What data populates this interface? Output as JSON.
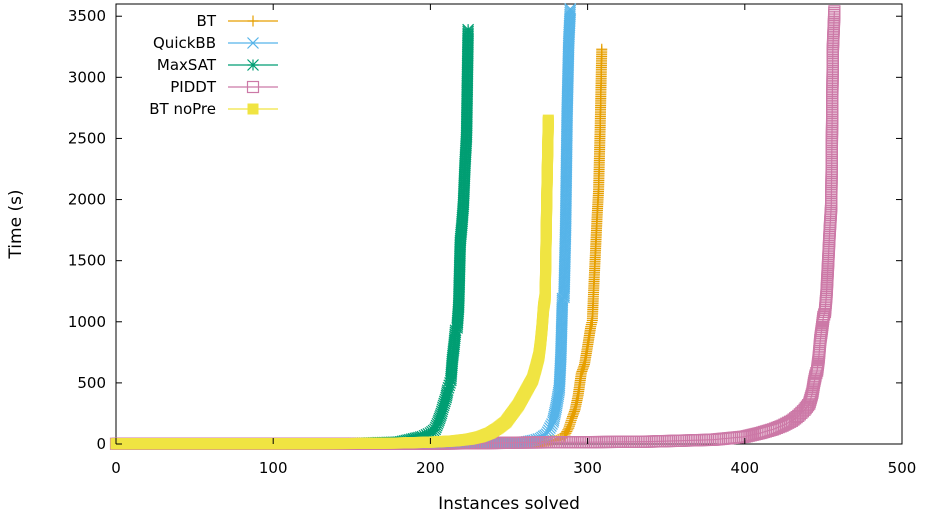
{
  "chart_data": {
    "type": "line",
    "title": "",
    "xlabel": "Instances solved",
    "ylabel": "Time (s)",
    "xlim": [
      0,
      500
    ],
    "ylim": [
      0,
      3600
    ],
    "x_ticks": [
      0,
      100,
      200,
      300,
      400,
      500
    ],
    "y_ticks": [
      0,
      500,
      1000,
      1500,
      2000,
      2500,
      3000,
      3500
    ],
    "grid": false,
    "legend_position": "top-left",
    "series": [
      {
        "name": "BT",
        "color": "#e69f00",
        "marker": "plus",
        "points": [
          [
            0,
            2
          ],
          [
            100,
            2
          ],
          [
            200,
            2
          ],
          [
            230,
            4
          ],
          [
            250,
            8
          ],
          [
            260,
            12
          ],
          [
            270,
            18
          ],
          [
            280,
            30
          ],
          [
            285,
            60
          ],
          [
            288,
            130
          ],
          [
            290,
            210
          ],
          [
            292,
            280
          ],
          [
            294,
            400
          ],
          [
            296,
            580
          ],
          [
            298,
            650
          ],
          [
            300,
            800
          ],
          [
            302,
            960
          ],
          [
            303,
            1010
          ],
          [
            304,
            1300
          ],
          [
            305,
            1570
          ],
          [
            306,
            1850
          ],
          [
            307,
            2080
          ],
          [
            308,
            2590
          ],
          [
            309,
            3230
          ]
        ]
      },
      {
        "name": "QuickBB",
        "color": "#56b4e9",
        "marker": "cross",
        "points": [
          [
            0,
            2
          ],
          [
            100,
            2
          ],
          [
            200,
            2
          ],
          [
            230,
            4
          ],
          [
            250,
            8
          ],
          [
            260,
            15
          ],
          [
            266,
            30
          ],
          [
            270,
            45
          ],
          [
            274,
            80
          ],
          [
            276,
            130
          ],
          [
            278,
            180
          ],
          [
            280,
            300
          ],
          [
            282,
            450
          ],
          [
            283,
            720
          ],
          [
            284,
            1190
          ],
          [
            285,
            1200
          ],
          [
            286,
            1760
          ],
          [
            287,
            2720
          ],
          [
            288,
            3290
          ],
          [
            289,
            3560
          ]
        ]
      },
      {
        "name": "MaxSAT",
        "color": "#009e73",
        "marker": "star",
        "points": [
          [
            0,
            2
          ],
          [
            100,
            2
          ],
          [
            150,
            5
          ],
          [
            180,
            15
          ],
          [
            195,
            60
          ],
          [
            200,
            90
          ],
          [
            203,
            120
          ],
          [
            205,
            180
          ],
          [
            207,
            250
          ],
          [
            208,
            300
          ],
          [
            210,
            380
          ],
          [
            211,
            440
          ],
          [
            212,
            480
          ],
          [
            213,
            520
          ],
          [
            214,
            690
          ],
          [
            215,
            800
          ],
          [
            216,
            930
          ],
          [
            217,
            950
          ],
          [
            218,
            1130
          ],
          [
            219,
            1650
          ],
          [
            220,
            1790
          ],
          [
            221,
            1960
          ],
          [
            222,
            2280
          ],
          [
            223,
            2520
          ],
          [
            224,
            3390
          ]
        ]
      },
      {
        "name": "PIDDT",
        "color": "#cc79a7",
        "marker": "square-open",
        "points": [
          [
            0,
            2
          ],
          [
            100,
            2
          ],
          [
            200,
            2
          ],
          [
            240,
            8
          ],
          [
            260,
            12
          ],
          [
            300,
            15
          ],
          [
            340,
            20
          ],
          [
            380,
            35
          ],
          [
            400,
            60
          ],
          [
            410,
            90
          ],
          [
            418,
            120
          ],
          [
            424,
            150
          ],
          [
            430,
            190
          ],
          [
            434,
            230
          ],
          [
            438,
            280
          ],
          [
            441,
            330
          ],
          [
            443,
            420
          ],
          [
            444,
            500
          ],
          [
            445,
            560
          ],
          [
            446,
            600
          ],
          [
            447,
            700
          ],
          [
            448,
            850
          ],
          [
            449,
            940
          ],
          [
            450,
            1040
          ],
          [
            451,
            1080
          ],
          [
            452,
            1230
          ],
          [
            453,
            1480
          ],
          [
            454,
            1740
          ],
          [
            455,
            1950
          ],
          [
            456,
            3230
          ],
          [
            457,
            3540
          ]
        ]
      },
      {
        "name": "BT noPre",
        "color": "#f0e442",
        "marker": "square-filled",
        "points": [
          [
            0,
            2
          ],
          [
            100,
            2
          ],
          [
            150,
            4
          ],
          [
            180,
            8
          ],
          [
            200,
            15
          ],
          [
            215,
            25
          ],
          [
            225,
            40
          ],
          [
            232,
            60
          ],
          [
            238,
            90
          ],
          [
            243,
            130
          ],
          [
            248,
            180
          ],
          [
            252,
            250
          ],
          [
            256,
            320
          ],
          [
            259,
            390
          ],
          [
            262,
            460
          ],
          [
            265,
            530
          ],
          [
            267,
            620
          ],
          [
            269,
            720
          ],
          [
            270,
            820
          ],
          [
            271,
            950
          ],
          [
            272,
            1120
          ],
          [
            273,
            1200
          ],
          [
            274,
            1990
          ],
          [
            275,
            2650
          ]
        ]
      }
    ]
  }
}
